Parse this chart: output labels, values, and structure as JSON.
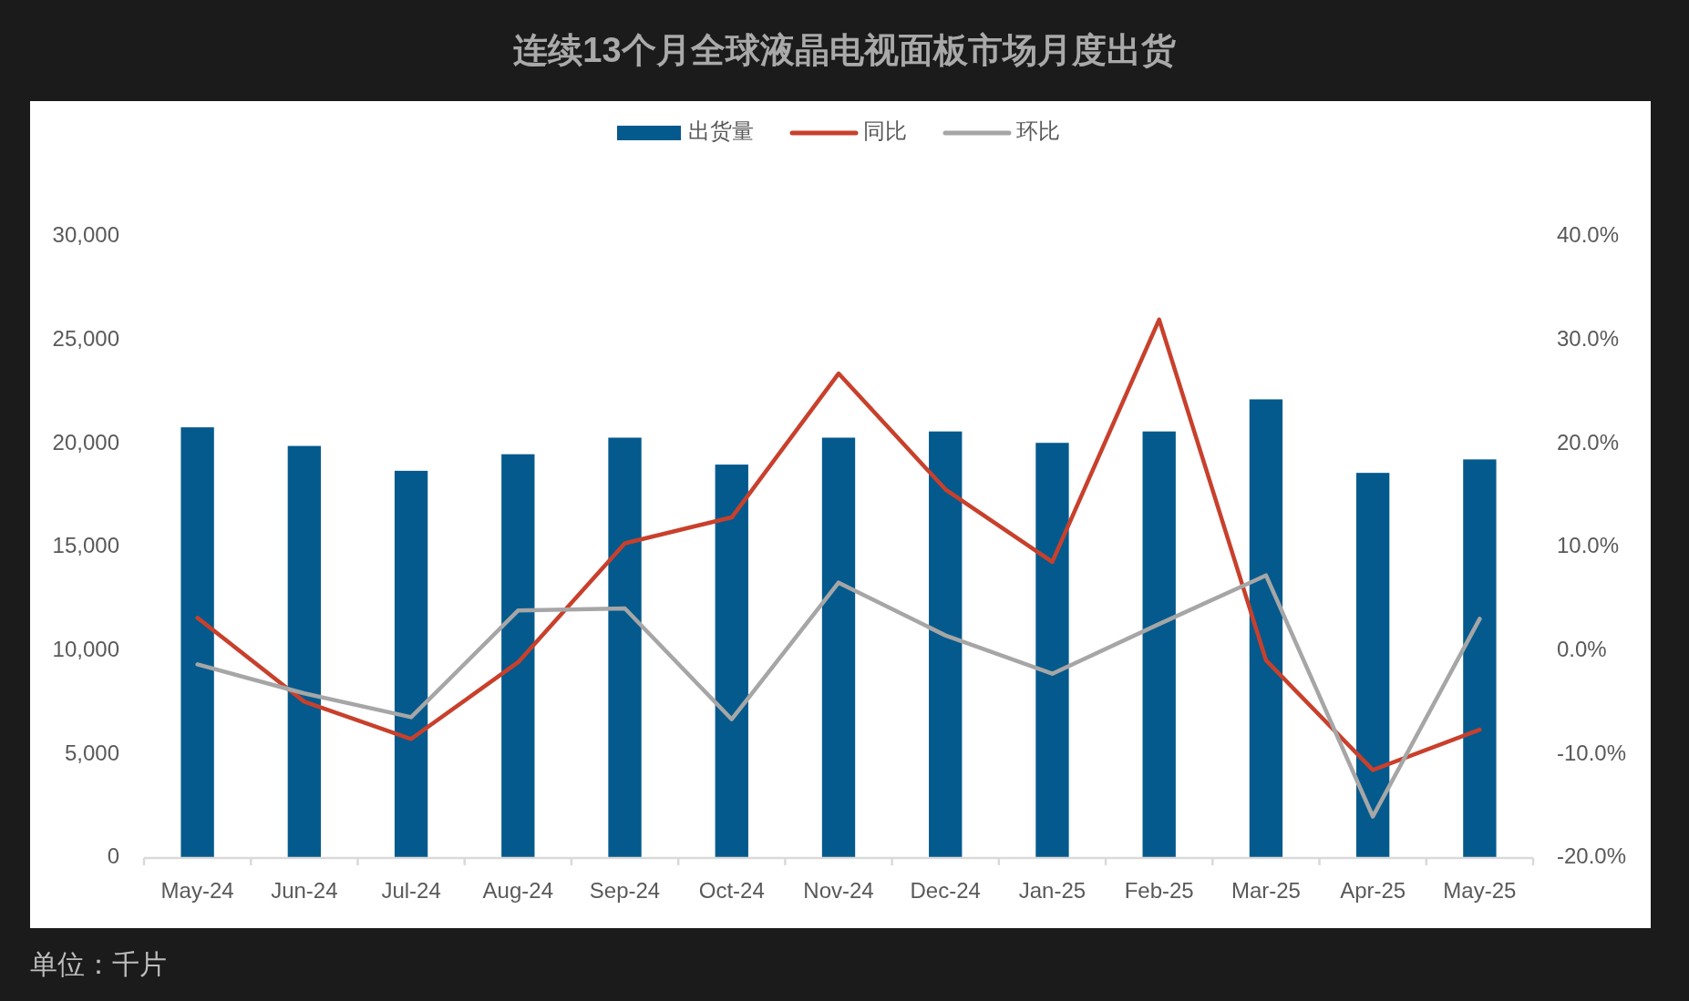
{
  "chart_data": {
    "type": "bar",
    "title": "连续13个月全球液晶电视面板市场月度出货",
    "categories": [
      "May-24",
      "Jun-24",
      "Jul-24",
      "Aug-24",
      "Sep-24",
      "Oct-24",
      "Nov-24",
      "Dec-24",
      "Jan-25",
      "Feb-25",
      "Mar-25",
      "Apr-25",
      "May-25"
    ],
    "series": [
      {
        "name": "出货量",
        "color": "#045a8d",
        "values": [
          20800,
          19900,
          18700,
          19500,
          20300,
          19000,
          20300,
          20600,
          20050,
          20600,
          22150,
          18600,
          19250
        ]
      },
      {
        "name": "同比",
        "type": "line",
        "axis": "y2",
        "color": "#c8402c",
        "values": [
          3.2,
          -4.9,
          -8.5,
          -1.1,
          10.4,
          12.9,
          26.8,
          15.6,
          8.6,
          32.0,
          -0.9,
          -11.5,
          -7.6
        ]
      },
      {
        "name": "环比",
        "type": "line",
        "axis": "y2",
        "color": "#a6a6a6",
        "values": [
          -1.3,
          -4.1,
          -6.4,
          3.9,
          4.1,
          -6.6,
          6.6,
          1.5,
          -2.2,
          2.6,
          7.3,
          -16.0,
          3.1
        ]
      }
    ],
    "ylim": [
      0,
      30000
    ],
    "yticks": [
      {
        "value": 0,
        "label": "0"
      },
      {
        "value": 5000,
        "label": "5,000"
      },
      {
        "value": 10000,
        "label": "10,000"
      },
      {
        "value": 15000,
        "label": "15,000"
      },
      {
        "value": 20000,
        "label": "20,000"
      },
      {
        "value": 25000,
        "label": "25,000"
      },
      {
        "value": 30000,
        "label": "30,000"
      }
    ],
    "y2lim": [
      -20,
      40
    ],
    "y2ticks": [
      {
        "value": -20,
        "label": "-20.0%"
      },
      {
        "value": -10,
        "label": "-10.0%"
      },
      {
        "value": 0,
        "label": "0.0%"
      },
      {
        "value": 10,
        "label": "10.0%"
      },
      {
        "value": 20,
        "label": "20.0%"
      },
      {
        "value": 30,
        "label": "30.0%"
      },
      {
        "value": 40,
        "label": "40.0%"
      }
    ],
    "legend": "top",
    "annotations": [
      "单位：千片"
    ]
  }
}
